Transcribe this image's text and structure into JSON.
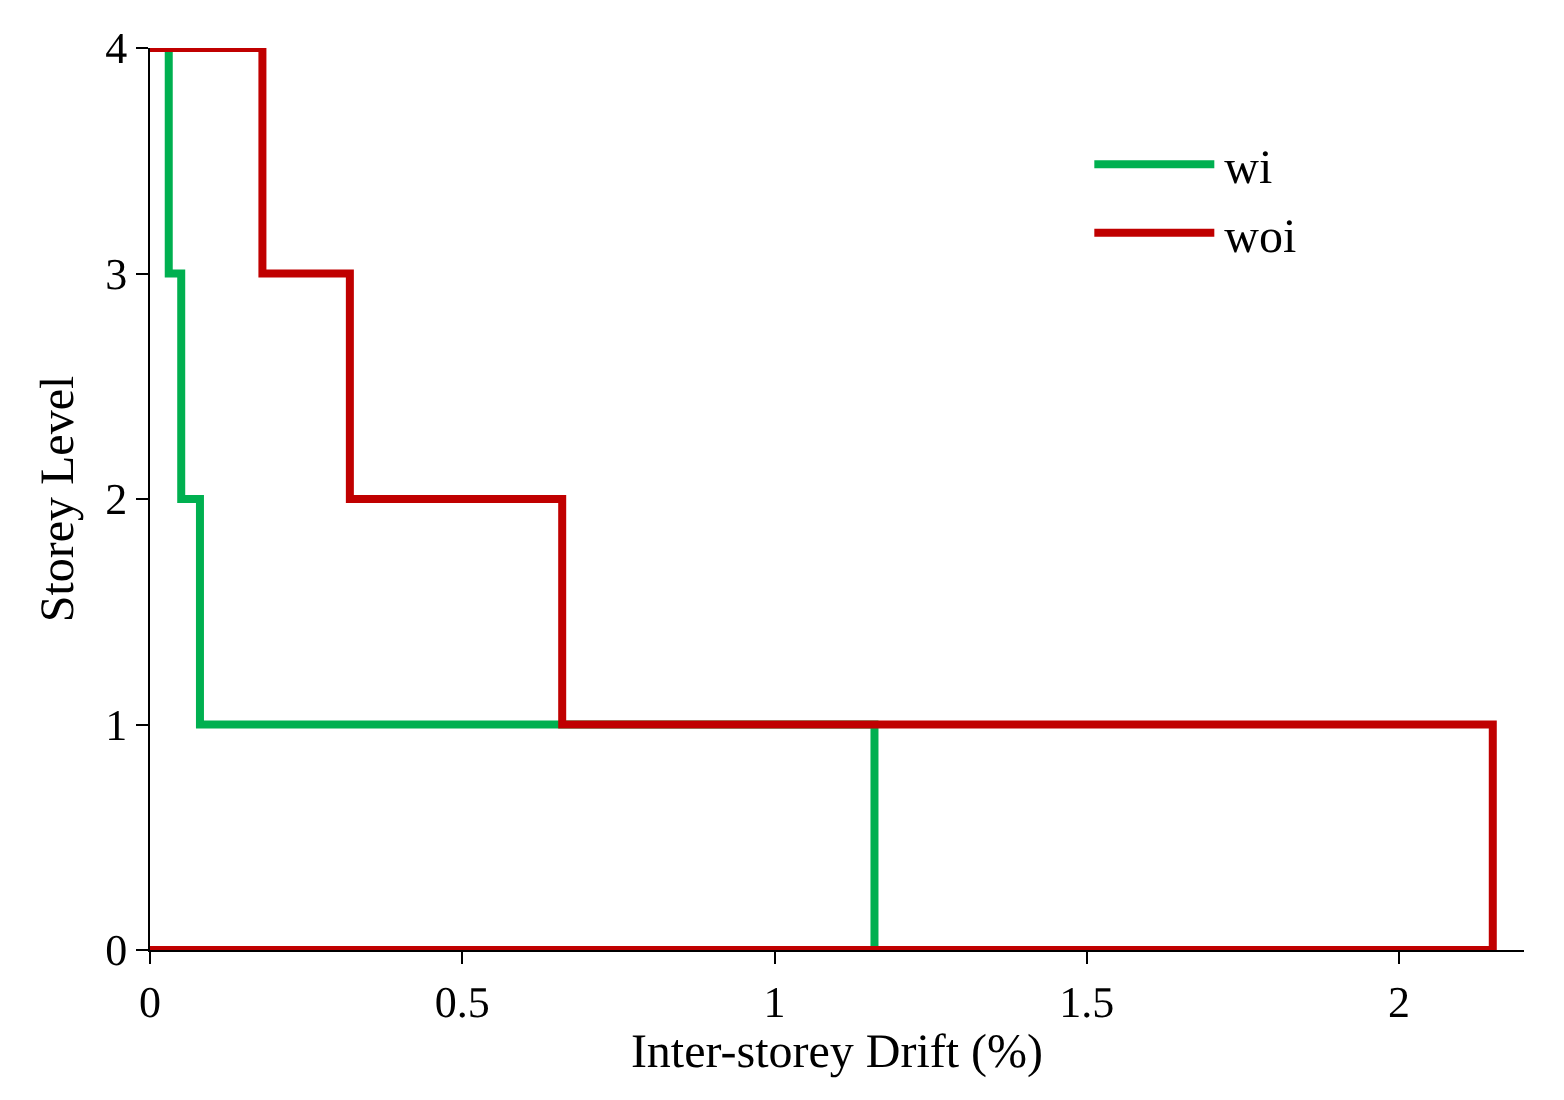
{
  "chart_data": {
    "type": "line",
    "xlabel": "Inter-storey Drift (%)",
    "ylabel": "Storey Level",
    "series": [
      {
        "name": "wi",
        "color": "#00b050",
        "x": [
          0.03,
          0.03,
          0.05,
          0.05,
          0.08,
          0.08,
          1.16,
          1.16
        ],
        "values": [
          4,
          3,
          3,
          2,
          2,
          1,
          1,
          0
        ]
      },
      {
        "name": "woi",
        "color": "#c00000",
        "x": [
          0,
          0.18,
          0.18,
          0.32,
          0.32,
          0.66,
          0.66,
          2.15,
          2.15,
          0
        ],
        "values": [
          4,
          4,
          3,
          3,
          2,
          2,
          1,
          1,
          0,
          0
        ]
      }
    ],
    "xlim": [
      0,
      2.2
    ],
    "xticks": [
      0,
      0.5,
      1,
      1.5,
      2
    ],
    "ylim": [
      0,
      4
    ],
    "yticks": [
      0,
      1,
      2,
      3,
      4
    ],
    "legend": "top right",
    "marker": "none",
    "line_style": "solid"
  }
}
